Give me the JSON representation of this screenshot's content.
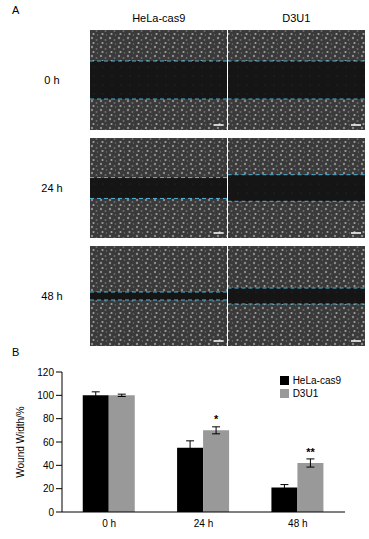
{
  "panel_a": {
    "label": "A",
    "columns": [
      "HeLa-cas9",
      "D3U1"
    ],
    "rows": [
      "0 h",
      "24 h",
      "48 h"
    ]
  },
  "chart_data": {
    "type": "bar",
    "panel_label": "B",
    "categories": [
      "0 h",
      "24 h",
      "48 h"
    ],
    "y_label": "Wound Width/%",
    "ylim": [
      0,
      120
    ],
    "yticks": [
      0,
      20,
      40,
      60,
      80,
      100,
      120
    ],
    "legend": "upper right",
    "series": [
      {
        "name": "HeLa-cas9",
        "color": "#000000",
        "values": [
          100,
          55,
          21
        ],
        "errors": [
          3,
          6,
          2.5
        ]
      },
      {
        "name": "D3U1",
        "color": "#999999",
        "values": [
          100,
          70,
          42
        ],
        "errors": [
          1,
          3,
          3.5
        ]
      }
    ],
    "annotations": [
      {
        "category": "24 h",
        "series": "D3U1",
        "text": "*"
      },
      {
        "category": "48 h",
        "series": "D3U1",
        "text": "**"
      }
    ]
  }
}
